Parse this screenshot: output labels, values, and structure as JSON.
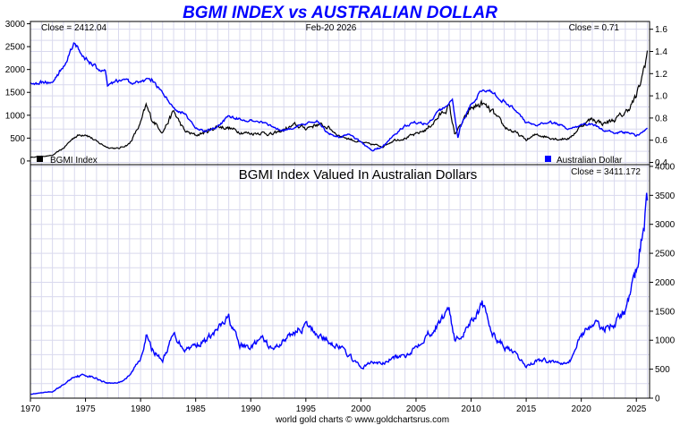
{
  "title": "BGMI INDEX vs AUSTRALIAN DOLLAR",
  "footer": "world gold charts © www.goldchartsrus.com",
  "colors": {
    "title": "#0000ff",
    "bgmi": "#000000",
    "aud": "#0000ff",
    "valued": "#0000ff",
    "grid": "#d9d9ee"
  },
  "chart_data": [
    {
      "type": "line",
      "title": "",
      "date_label": "Feb-20  2026",
      "close_left": "Close = 2412.04",
      "close_right": "Close = 0.71",
      "x_ticks": [
        1970,
        1975,
        1980,
        1985,
        1990,
        1995,
        2000,
        2005,
        2010,
        2015,
        2020,
        2025
      ],
      "xlim": [
        1970,
        2026.2
      ],
      "y_left": {
        "ticks": [
          0,
          500,
          1000,
          1500,
          2000,
          2500,
          3000
        ],
        "ylim": [
          -80,
          3050
        ]
      },
      "y_right": {
        "ticks": [
          0.4,
          0.6,
          0.8,
          1.0,
          1.2,
          1.4,
          1.6
        ],
        "ylim": [
          0.38,
          1.67
        ]
      },
      "grid": true,
      "legend_left": "BGMI Index",
      "legend_right": "Australian Dollar",
      "series": [
        {
          "name": "BGMI Index",
          "axis": "left",
          "x": [
            1970,
            1972,
            1973,
            1974,
            1975,
            1976,
            1977,
            1978,
            1979,
            1980,
            1980.5,
            1981,
            1982,
            1983,
            1984,
            1985,
            1986,
            1987,
            1988,
            1989,
            1990,
            1991,
            1992,
            1993,
            1994,
            1995,
            1996,
            1997,
            1998,
            1999,
            2000,
            2001,
            2002,
            2003,
            2004,
            2005,
            2006,
            2007,
            2008,
            2008.5,
            2009,
            2010,
            2011,
            2012,
            2013,
            2014,
            2015,
            2016,
            2017,
            2018,
            2019,
            2020,
            2021,
            2022,
            2023,
            2024,
            2025,
            2025.5,
            2026
          ],
          "y": [
            80,
            120,
            280,
            530,
            600,
            420,
            300,
            270,
            380,
            820,
            1200,
            920,
            640,
            1080,
            650,
            560,
            640,
            760,
            720,
            640,
            600,
            620,
            580,
            680,
            780,
            720,
            800,
            740,
            560,
            480,
            400,
            360,
            320,
            460,
            500,
            580,
            700,
            950,
            1200,
            600,
            750,
            1150,
            1250,
            1050,
            750,
            620,
            460,
            580,
            520,
            480,
            500,
            780,
            920,
            820,
            900,
            1050,
            1400,
            1800,
            2412
          ]
        },
        {
          "name": "Australian Dollar",
          "axis": "right",
          "x": [
            1970,
            1972,
            1973,
            1974,
            1975,
            1976,
            1976.8,
            1977,
            1978,
            1979,
            1980,
            1981,
            1982,
            1983,
            1983.5,
            1984,
            1985,
            1986,
            1987,
            1988,
            1989,
            1990,
            1991,
            1992,
            1993,
            1994,
            1995,
            1996,
            1997,
            1998,
            1999,
            2000,
            2001,
            2002,
            2003,
            2004,
            2005,
            2006,
            2007,
            2008,
            2008.3,
            2008.8,
            2009,
            2010,
            2011,
            2012,
            2013,
            2014,
            2015,
            2016,
            2017,
            2018,
            2019,
            2020,
            2021,
            2022,
            2023,
            2024,
            2025,
            2026
          ],
          "y": [
            1.12,
            1.12,
            1.27,
            1.48,
            1.33,
            1.25,
            1.22,
            1.08,
            1.14,
            1.12,
            1.13,
            1.15,
            1.02,
            0.89,
            0.86,
            0.84,
            0.7,
            0.68,
            0.72,
            0.82,
            0.79,
            0.78,
            0.77,
            0.72,
            0.69,
            0.72,
            0.74,
            0.78,
            0.66,
            0.63,
            0.65,
            0.58,
            0.51,
            0.54,
            0.65,
            0.73,
            0.76,
            0.75,
            0.85,
            0.93,
            0.96,
            0.62,
            0.72,
            0.92,
            1.05,
            1.03,
            0.95,
            0.88,
            0.76,
            0.73,
            0.77,
            0.74,
            0.7,
            0.73,
            0.75,
            0.69,
            0.67,
            0.67,
            0.64,
            0.71
          ]
        }
      ],
      "y_right_labels": [
        "0.4",
        "0.6",
        "0.8",
        "1.0",
        "1.2",
        "1.4",
        "1.6"
      ]
    },
    {
      "type": "line",
      "title": "BGMI Index Valued In Australian Dollars",
      "close_label": "Close = 3411.172",
      "x_ticks": [
        1970,
        1975,
        1980,
        1985,
        1990,
        1995,
        2000,
        2005,
        2010,
        2015,
        2020,
        2025
      ],
      "x_labels": [
        "1970",
        "1975",
        "1980",
        "1985",
        "1990",
        "1995",
        "2000",
        "2005",
        "2010",
        "2015",
        "2020",
        "2025"
      ],
      "xlim": [
        1970,
        2026.2
      ],
      "y_right": {
        "ticks": [
          0,
          500,
          1000,
          1500,
          2000,
          2500,
          3000,
          3500,
          4000
        ],
        "ylim": [
          0,
          4030
        ]
      },
      "grid": true,
      "series": [
        {
          "name": "",
          "axis": "right",
          "x": [
            1970,
            1972,
            1973,
            1974,
            1975,
            1976,
            1977,
            1978,
            1979,
            1980,
            1980.5,
            1981,
            1982,
            1983,
            1984,
            1985,
            1986,
            1987,
            1988,
            1989,
            1990,
            1991,
            1992,
            1993,
            1994,
            1995,
            1996,
            1997,
            1998,
            1999,
            2000,
            2001,
            2002,
            2003,
            2004,
            2005,
            2006,
            2007,
            2008,
            2008.5,
            2009,
            2010,
            2011,
            2012,
            2013,
            2014,
            2015,
            2016,
            2017,
            2018,
            2019,
            2020,
            2021,
            2022,
            2023,
            2024,
            2025,
            2025.5,
            2026
          ],
          "y": [
            70,
            110,
            230,
            380,
            400,
            340,
            260,
            270,
            380,
            700,
            1080,
            850,
            650,
            1100,
            850,
            920,
            1000,
            1180,
            1380,
            900,
            880,
            1030,
            830,
            1000,
            1150,
            1250,
            1120,
            980,
            900,
            720,
            520,
            620,
            600,
            700,
            720,
            900,
            1100,
            1250,
            1600,
            1000,
            1050,
            1350,
            1600,
            1100,
            900,
            750,
            550,
            660,
            640,
            620,
            650,
            1100,
            1300,
            1200,
            1300,
            1500,
            2200,
            2800,
            3411
          ]
        }
      ]
    }
  ]
}
